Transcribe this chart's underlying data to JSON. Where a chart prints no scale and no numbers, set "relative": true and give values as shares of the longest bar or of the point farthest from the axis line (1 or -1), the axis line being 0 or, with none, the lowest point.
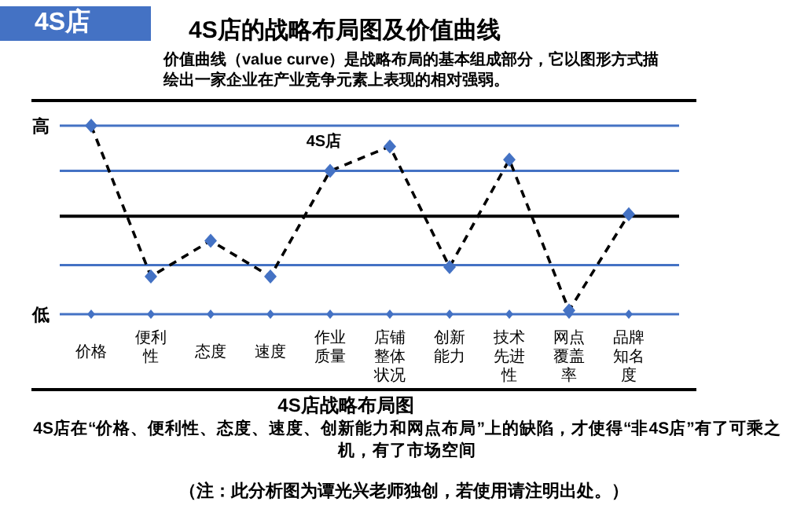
{
  "chart_data": {
    "type": "line",
    "relative": true,
    "title": "4S店的战略布局图及价值曲线",
    "subtitle": "价值曲线（value curve）是战略布局的基本组成部分，它以图形方式描绘出一家企业在产业竞争元素上表现的相对强弱。",
    "xlabel": "4S店战略布局图",
    "annotations": [
      "4S店",
      "4S店在“价格、便利性、态度、速度、创新能力和网点布局”上的缺陷，才使得“非4S店”有了可乘之机，有了市场空间",
      "（注：此分析图为谭光兴老师独创，若使用请注明出处。）"
    ],
    "categories": [
      "价格",
      "便利性",
      "态度",
      "速度",
      "作业质量",
      "店铺整体状况",
      "创新能力",
      "技术先进性",
      "网点覆盖率",
      "品牌知名度"
    ],
    "series": [
      {
        "name": "4S店",
        "color": "#000000",
        "colors": [
          "#4472c4",
          "#4472c4",
          "#4472c4",
          "#4472c4",
          "#4472c4",
          "#4472c4",
          "#4472c4",
          "#4472c4",
          "#4472c4",
          "#4472c4"
        ],
        "values": [
          1,
          0.2,
          0.39,
          0.2,
          0.76,
          0.89,
          0.25,
          0.82,
          0.02,
          0.53
        ]
      }
    ],
    "ref_lines": [
      {
        "axis": "y",
        "value": 1,
        "label": "高",
        "color": "#4472c4"
      },
      {
        "axis": "y",
        "value": 0.76,
        "label": null,
        "color": "#4472c4"
      },
      {
        "axis": "y",
        "value": 0.52,
        "label": null,
        "color": "#000000"
      },
      {
        "axis": "y",
        "value": 0.26,
        "label": null,
        "color": "#4472c4"
      },
      {
        "axis": "y",
        "value": 0,
        "label": "低",
        "color": "#4472c4"
      }
    ],
    "marker": "diamond",
    "line_style": "dashed"
  }
}
